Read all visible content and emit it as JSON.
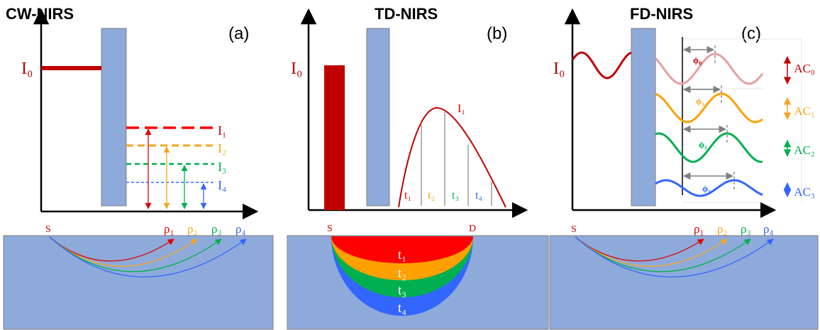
{
  "panels": [
    {
      "title": "CW-NIRS",
      "tag": "(a)",
      "source_label": "I₀",
      "detected_labels": [
        "I₁",
        "I₂",
        "I₃",
        "I₄"
      ],
      "source_point": "S",
      "distance_labels": [
        "ρ₁",
        "ρ₂",
        "ρ₃",
        "ρ₄"
      ]
    },
    {
      "title": "TD-NIRS",
      "tag": "(b)",
      "source_label": "I₀",
      "curve_label": "I₁",
      "time_labels": [
        "t₁",
        "t₂",
        "t₃",
        "t₄"
      ],
      "source_point": "S",
      "detector_point": "D",
      "layer_labels": [
        "t₁",
        "t₂",
        "t₃",
        "t₄"
      ]
    },
    {
      "title": "FD-NIRS",
      "tag": "(c)",
      "source_label": "I₀",
      "phase_labels": [
        "ϕ₀",
        "ϕ₁",
        "ϕ₁",
        "ϕ₁"
      ],
      "amplitude_labels": [
        "AC₀",
        "AC₁",
        "AC₂",
        "AC₃"
      ],
      "source_point": "S",
      "distance_labels": [
        "ρ₁",
        "ρ₂",
        "ρ₃",
        "ρ₄"
      ]
    }
  ]
}
